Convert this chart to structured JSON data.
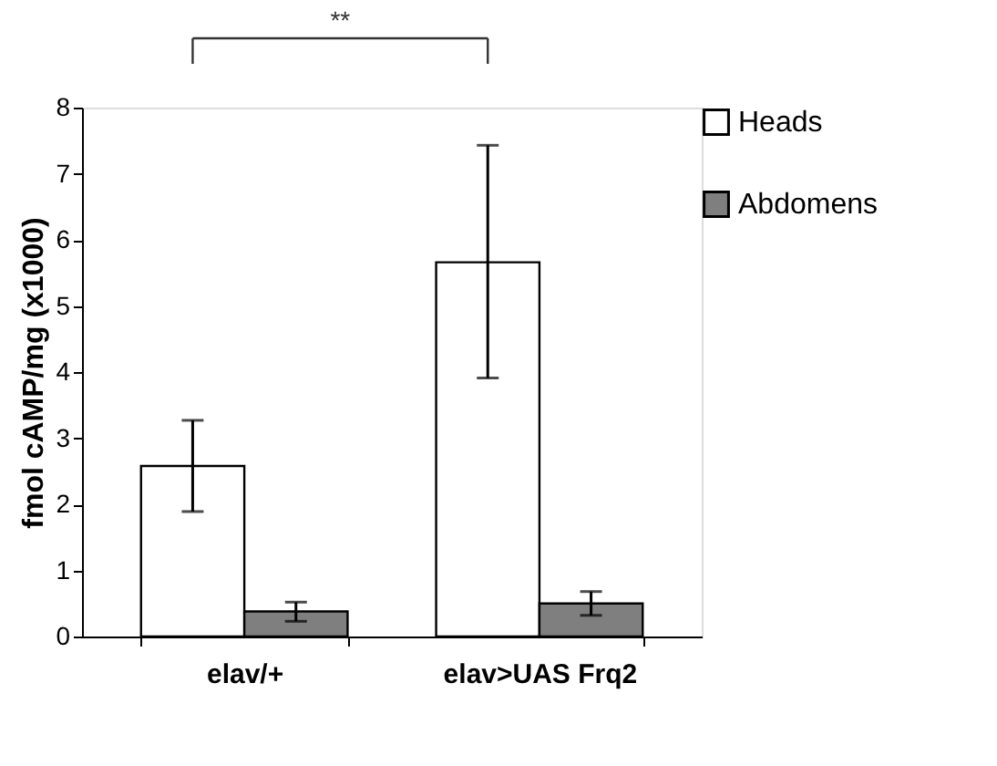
{
  "chart_data": {
    "type": "bar",
    "ylabel": "fmol cAMP/mg (x1000)",
    "categories": [
      "elav/+",
      "elav>UAS Frq2"
    ],
    "series": [
      {
        "name": "Heads",
        "color": "#ffffff",
        "values": [
          2.58,
          5.66
        ],
        "errors": [
          [
            1.89,
            3.27
          ],
          [
            3.91,
            7.43
          ]
        ]
      },
      {
        "name": "Abdomens",
        "color": "#7f7f7f",
        "values": [
          0.38,
          0.5
        ],
        "errors": [
          [
            0.23,
            0.52
          ],
          [
            0.32,
            0.68
          ]
        ]
      }
    ],
    "ylim": [
      0,
      8
    ],
    "yticks": [
      0,
      1,
      2,
      3,
      4,
      5,
      6,
      7,
      8
    ],
    "grid": false,
    "legend": "top right",
    "annotations": [
      "**"
    ]
  }
}
